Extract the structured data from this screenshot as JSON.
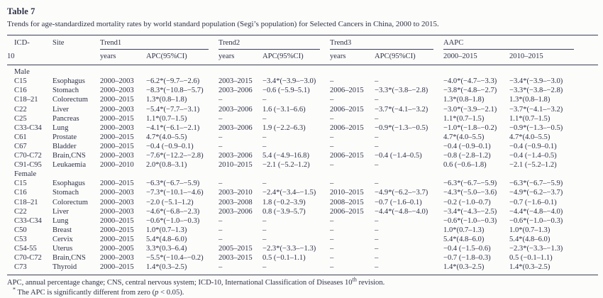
{
  "title": "Table 7",
  "subtitle": "Trends for age-standardized mortality rates by world standard population (Segi’s population) for Selected Cancers in China, 2000 to 2015.",
  "columns": {
    "icd_line1": "ICD-",
    "icd_line2": "10",
    "site": "Site",
    "trend1": "Trend1",
    "trend2": "Trend2",
    "trend3": "Trend3",
    "aapc": "AAPC",
    "years": "years",
    "apc_ci": "APC(95%CI)",
    "aapc_2000_2015": "2000–2015",
    "aapc_2010_2015": "2010–2015"
  },
  "sections": [
    {
      "label": "Male",
      "rows": [
        {
          "icd": "C15",
          "site": "Esophagus",
          "t1y": "2000–2003",
          "t1apc": "−6.2*(−9.7–−2.6)",
          "t2y": "2003–2015",
          "t2apc": "−3.4*(−3.9–−3.0)",
          "t3y": "–",
          "t3apc": "–",
          "aapc1": "−4.0*(−4.7–−3.3)",
          "aapc2": "−3.4*(−3.9–−3.0)"
        },
        {
          "icd": "C16",
          "site": "Stomach",
          "t1y": "2000–2003",
          "t1apc": "−8.3*(−10.8–−5.7)",
          "t2y": "2003–2006",
          "t2apc": "−0.6 (−5.9–5.1)",
          "t3y": "2006–2015",
          "t3apc": "−3.3*(−3.8–−2.8)",
          "aapc1": "−3.8*(−4.8–−2.7)",
          "aapc2": "−3.3*(−3.8–−2.8)"
        },
        {
          "icd": "C18–21",
          "site": "Colorectum",
          "t1y": "2000–2015",
          "t1apc": "1.3*(0.8–1.8)",
          "t2y": "–",
          "t2apc": "–",
          "t3y": "–",
          "t3apc": "–",
          "aapc1": "1.3*(0.8–1.8)",
          "aapc2": "1.3*(0.8–1.8)"
        },
        {
          "icd": "C22",
          "site": "Liver",
          "t1y": "2000–2003",
          "t1apc": "−5.4*(−7.7–−3.1)",
          "t2y": "2003–2006",
          "t2apc": "1.6 (−3.1–6.6)",
          "t3y": "2006–2015",
          "t3apc": "−3.7*(−4.1–−3.2)",
          "aapc1": "−3.0*(−3.9–−2.1)",
          "aapc2": "−3.7*(−4.1–−3.2)"
        },
        {
          "icd": "C25",
          "site": "Pancreas",
          "t1y": "2000–2015",
          "t1apc": "1.1*(0.7–1.5)",
          "t2y": "–",
          "t2apc": "–",
          "t3y": "–",
          "t3apc": "–",
          "aapc1": "1.1*(0.7–1.5)",
          "aapc2": "1.1*(0.7–1.5)"
        },
        {
          "icd": "C33-C34",
          "site": "Lung",
          "t1y": "2000–2003",
          "t1apc": "−4.1*(−6.1–−2.1)",
          "t2y": "2003–2006",
          "t2apc": "1.9 (−2.2–6.3)",
          "t3y": "2006–2015",
          "t3apc": "−0.9*(−1.3–−0.5)",
          "aapc1": "−1.0*(−1.8–−0.2)",
          "aapc2": "−0.9*(−1.3–−0.5)"
        },
        {
          "icd": "C61",
          "site": "Prostate",
          "t1y": "2000–2015",
          "t1apc": "4.7*(4.0–5.5)",
          "t2y": "–",
          "t2apc": "–",
          "t3y": "–",
          "t3apc": "–",
          "aapc1": "4.7*(4.0–5.5)",
          "aapc2": "4.7*(4.0–5.5)"
        },
        {
          "icd": "C67",
          "site": "Bladder",
          "t1y": "2000–2015",
          "t1apc": "−0.4 (−0.9–0.1)",
          "t2y": "–",
          "t2apc": "–",
          "t3y": "–",
          "t3apc": "–",
          "aapc1": "−0.4 (−0.9–0.1)",
          "aapc2": "−0.4 (−0.9–0.1)"
        },
        {
          "icd": "C70-C72",
          "site": "Brain,CNS",
          "t1y": "2000–2003",
          "t1apc": "−7.6*(−12.2–−2.8)",
          "t2y": "2003–2006",
          "t2apc": "5.4 (−4.9–16.8)",
          "t3y": "2006–2015",
          "t3apc": "−0.4 (−1.4–0.5)",
          "aapc1": "−0.8 (−2.8–1.2)",
          "aapc2": "−0.4 (−1.4–0.5)"
        },
        {
          "icd": "C91-C95",
          "site": "Leukaemia",
          "t1y": "2000–2010",
          "t1apc": "2.0*(0.8–3.1)",
          "t2y": "2010–2015",
          "t2apc": "−2.1 (−5.2–1.2)",
          "t3y": "–",
          "t3apc": "–",
          "aapc1": "0.6 (−0.6–1.8)",
          "aapc2": "−2.1 (−5.2–1.2)"
        }
      ]
    },
    {
      "label": "Female",
      "rows": [
        {
          "icd": "C15",
          "site": "Esophagus",
          "t1y": "2000–2015",
          "t1apc": "−6.3*(−6.7–−5.9)",
          "t2y": "–",
          "t2apc": "–",
          "t3y": "–",
          "t3apc": "–",
          "aapc1": "−6.3*(−6.7–−5.9)",
          "aapc2": "−6.3*(−6.7–−5.9)"
        },
        {
          "icd": "C16",
          "site": "Stomach",
          "t1y": "2000–2003",
          "t1apc": "−7.3*(−10.1–−4.6)",
          "t2y": "2003–2010",
          "t2apc": "−2.4*(−3.4–−1.5)",
          "t3y": "2010–2015",
          "t3apc": "−4.9*(−6.2–−3.7)",
          "aapc1": "−4.3*(−5.0–−3.6)",
          "aapc2": "−4.9*(−6.2–−3.7)"
        },
        {
          "icd": "C18–21",
          "site": "Colorectum",
          "t1y": "2000–2003",
          "t1apc": "−2.0 (−5.1–1.2)",
          "t2y": "2003–2008",
          "t2apc": "1.8 (−0.2–3.9)",
          "t3y": "2008–2015",
          "t3apc": "−0.7 (−1.6–0.1)",
          "aapc1": "−0.2 (−1.0–0.7)",
          "aapc2": "−0.7 (−1.6–0.1)"
        },
        {
          "icd": "C22",
          "site": "Liver",
          "t1y": "2000–2003",
          "t1apc": "−4.6*(−6.8–−2.3)",
          "t2y": "2003–2006",
          "t2apc": "0.8 (−3.9–5.7)",
          "t3y": "2006–2015",
          "t3apc": "−4.4*(−4.8–−4.0)",
          "aapc1": "−3.4*(−4.3–−2.5)",
          "aapc2": "−4.4*(−4.8–−4.0)"
        },
        {
          "icd": "C33-C34",
          "site": "Lung",
          "t1y": "2000–2015",
          "t1apc": "−0.6*(−1.0–−0.3)",
          "t2y": "–",
          "t2apc": "–",
          "t3y": "–",
          "t3apc": "–",
          "aapc1": "−0.6*(−1.0–−0.3)",
          "aapc2": "−0.6*(−1.0–−0.3)"
        },
        {
          "icd": "C50",
          "site": "Breast",
          "t1y": "2000–2015",
          "t1apc": "1.0*(0.7–1.3)",
          "t2y": "–",
          "t2apc": "–",
          "t3y": "–",
          "t3apc": "–",
          "aapc1": "1.0*(0.7–1.3)",
          "aapc2": "1.0*(0.7–1.3)"
        },
        {
          "icd": "C53",
          "site": "Cervix",
          "t1y": "2000–2015",
          "t1apc": "5.4*(4.8–6.0)",
          "t2y": "–",
          "t2apc": "–",
          "t3y": "–",
          "t3apc": "–",
          "aapc1": "5.4*(4.8–6.0)",
          "aapc2": "5.4*(4.8–6.0)"
        },
        {
          "icd": "C54-55",
          "site": "Uterus",
          "t1y": "2000–2005",
          "t1apc": "3.3*(0.3–6.4)",
          "t2y": "2005–2015",
          "t2apc": "−2.3*(−3.3–−1.3)",
          "t3y": "–",
          "t3apc": "–",
          "aapc1": "−0.4 (−1.5–0.6)",
          "aapc2": "−2.3*(−3.3–−1.3)"
        },
        {
          "icd": "C70-C72",
          "site": "Brain,CNS",
          "t1y": "2000–2003",
          "t1apc": "−5.5*(−10.4–−0.2)",
          "t2y": "2003–2015",
          "t2apc": "0.5 (−0.1–1.1)",
          "t3y": "–",
          "t3apc": "–",
          "aapc1": "−0.7 (−1.8–0.3)",
          "aapc2": "0.5 (−0.1–1.1)"
        },
        {
          "icd": "C73",
          "site": "Thyroid",
          "t1y": "2000–2015",
          "t1apc": "1.4*(0.3–2.5)",
          "t2y": "–",
          "t2apc": "–",
          "t3y": "–",
          "t3apc": "–",
          "aapc1": "1.4*(0.3–2.5)",
          "aapc2": "1.4*(0.3–2.5)"
        }
      ]
    }
  ],
  "footnotes": {
    "line1_pre": "APC, annual percentage change; CNS, central nervous system; ICD-10, International Classification of Diseases 10",
    "line1_sup": "th",
    "line1_post": " revision.",
    "line2_marker": "*",
    "line2_pre": " The APC is significantly different from zero (",
    "line2_italic": "p",
    "line2_post": " < 0.05)."
  }
}
